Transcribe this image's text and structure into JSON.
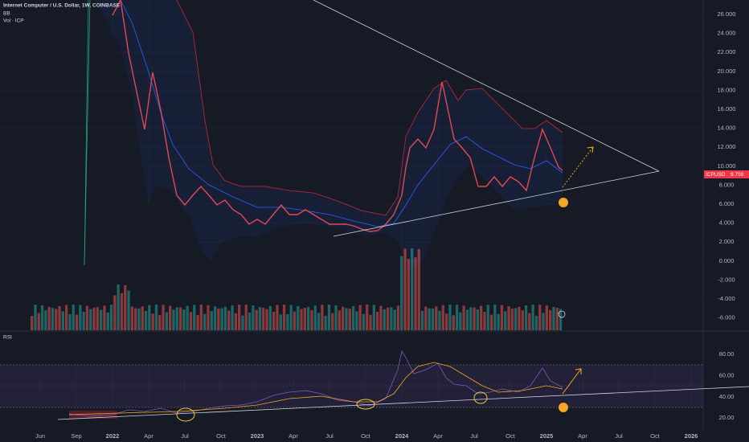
{
  "header": {
    "symbol": "Internet Computer / U.S. Dollar, 1W, COINBASE",
    "indicator_1": "BB",
    "indicator_2": "Vol · ICP"
  },
  "price_axis": {
    "labels": [
      "26.000",
      "24.000",
      "22.000",
      "20.000",
      "18.000",
      "16.000",
      "14.000",
      "12.000",
      "10.000",
      "8.000",
      "6.000",
      "4.000",
      "2.000",
      "0.000",
      "-2.000",
      "-4.000",
      "-6.000"
    ]
  },
  "price_tag": {
    "symbol": "ICPUSD",
    "price": "9.709"
  },
  "rsi_pane": {
    "title": "RSI",
    "labels": [
      "80.00",
      "60.00",
      "40.00",
      "20.00"
    ]
  },
  "time_axis": {
    "labels": [
      "Jun",
      "Sep",
      "2022",
      "Apr",
      "Jul",
      "Oct",
      "2023",
      "Apr",
      "Jul",
      "Oct",
      "2024",
      "Apr",
      "Jul",
      "Oct",
      "2025",
      "Apr",
      "Jul",
      "Oct",
      "2026"
    ]
  }
}
